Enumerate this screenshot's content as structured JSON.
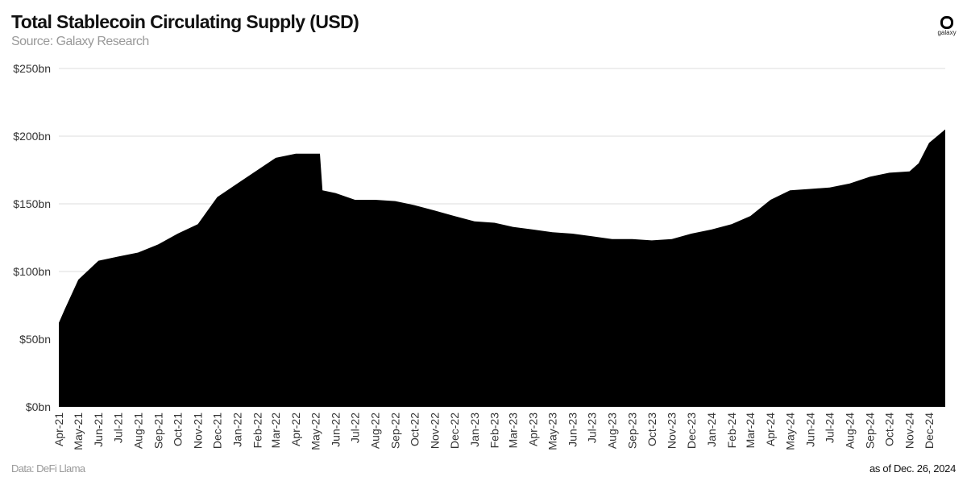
{
  "header": {
    "title": "Total Stablecoin Circulating Supply (USD)",
    "subtitle": "Source: Galaxy Research",
    "logo_text": "galaxy"
  },
  "footer": {
    "source": "Data: DeFi Llama",
    "as_of": "as of Dec. 26, 2024"
  },
  "chart_data": {
    "type": "area",
    "title": "Total Stablecoin Circulating Supply (USD)",
    "subtitle": "Source: Galaxy Research",
    "ylim": [
      0,
      250
    ],
    "xlim": [
      "2021-04-01",
      "2024-12-26"
    ],
    "y_ticks": [
      0,
      50,
      100,
      150,
      200,
      250
    ],
    "y_tick_labels": [
      "$0bn",
      "$50bn",
      "$100bn",
      "$150bn",
      "$200bn",
      "$250bn"
    ],
    "x_tick_labels": [
      "Apr-21",
      "May-21",
      "Jun-21",
      "Jul-21",
      "Aug-21",
      "Sep-21",
      "Oct-21",
      "Nov-21",
      "Dec-21",
      "Jan-22",
      "Feb-22",
      "Mar-22",
      "Apr-22",
      "May-22",
      "Jun-22",
      "Jul-22",
      "Aug-22",
      "Sep-22",
      "Oct-22",
      "Nov-22",
      "Dec-22",
      "Jan-23",
      "Feb-23",
      "Mar-23",
      "Apr-23",
      "May-23",
      "Jun-23",
      "Jul-23",
      "Aug-23",
      "Sep-23",
      "Oct-23",
      "Nov-23",
      "Dec-23",
      "Jan-24",
      "Feb-24",
      "Mar-24",
      "Apr-24",
      "May-24",
      "Jun-24",
      "Jul-24",
      "Aug-24",
      "Sep-24",
      "Oct-24",
      "Nov-24",
      "Dec-24"
    ],
    "grid": "horizontal",
    "color": "#000000",
    "series": [
      {
        "x": [
          "2021-04-01",
          "2021-04-10",
          "2021-05-01",
          "2021-06-01",
          "2021-07-01",
          "2021-08-01",
          "2021-09-01",
          "2021-10-01",
          "2021-11-01",
          "2021-12-01",
          "2022-01-01",
          "2022-02-01",
          "2022-03-01",
          "2022-04-01",
          "2022-05-08",
          "2022-05-12",
          "2022-06-01",
          "2022-07-01",
          "2022-08-01",
          "2022-09-01",
          "2022-10-01",
          "2022-11-01",
          "2022-12-01",
          "2023-01-01",
          "2023-02-01",
          "2023-03-01",
          "2023-04-01",
          "2023-05-01",
          "2023-06-01",
          "2023-07-01",
          "2023-08-01",
          "2023-09-01",
          "2023-10-01",
          "2023-11-01",
          "2023-12-01",
          "2024-01-01",
          "2024-02-01",
          "2024-03-01",
          "2024-04-01",
          "2024-05-01",
          "2024-06-01",
          "2024-07-01",
          "2024-08-01",
          "2024-09-01",
          "2024-10-01",
          "2024-11-01",
          "2024-11-15",
          "2024-12-01",
          "2024-12-26"
        ],
        "values": [
          62,
          72,
          94,
          108,
          111,
          114,
          120,
          128,
          135,
          155,
          165,
          175,
          184,
          187,
          187,
          160,
          158,
          153,
          153,
          152,
          149,
          145,
          141,
          137,
          136,
          133,
          131,
          129,
          128,
          126,
          124,
          124,
          123,
          124,
          128,
          131,
          135,
          141,
          153,
          160,
          161,
          162,
          165,
          170,
          173,
          174,
          180,
          195,
          205
        ]
      }
    ]
  }
}
